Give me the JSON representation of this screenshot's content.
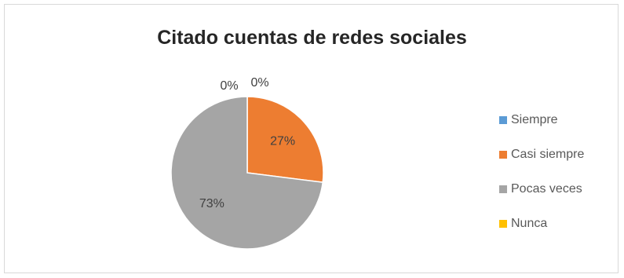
{
  "chart_data": {
    "type": "pie",
    "title": "Citado cuentas de redes sociales",
    "categories": [
      "Siempre",
      "Casi siempre",
      "Pocas veces",
      "Nunca"
    ],
    "values": [
      0,
      27,
      73,
      0
    ],
    "labels": [
      "0%",
      "27%",
      "73%",
      "0%"
    ],
    "colors": [
      "#5b9bd5",
      "#ed7d31",
      "#a5a5a5",
      "#ffc000"
    ],
    "legend_position": "right"
  }
}
